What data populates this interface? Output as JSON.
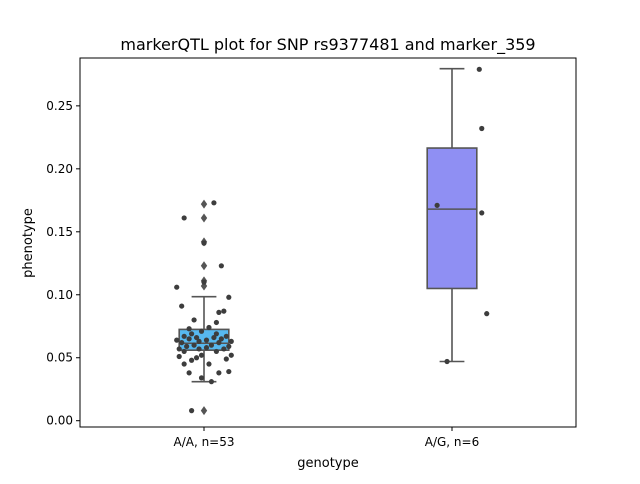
{
  "chart_data": {
    "type": "box",
    "title": "markerQTL plot for SNP rs9377481 and marker_359",
    "xlabel": "genotype",
    "ylabel": "phenotype",
    "ylim": [
      -0.005,
      0.288
    ],
    "yticks": [
      0.0,
      0.05,
      0.1,
      0.15,
      0.2,
      0.25
    ],
    "ytick_labels": [
      "0.00",
      "0.05",
      "0.10",
      "0.15",
      "0.20",
      "0.25"
    ],
    "grid": false,
    "groups": [
      {
        "label": "A/A, n=53",
        "color": "#57b8ef",
        "box": {
          "whisker_low": 0.031,
          "q1": 0.056,
          "median": 0.0615,
          "q3": 0.0725,
          "whisker_high": 0.0985
        },
        "outliers": [
          0.008,
          0.107,
          0.111,
          0.123,
          0.142,
          0.161,
          0.172
        ],
        "points": [
          {
            "dx": -0.05,
            "y": 0.008
          },
          {
            "dx": 0.03,
            "y": 0.031
          },
          {
            "dx": -0.01,
            "y": 0.034
          },
          {
            "dx": -0.06,
            "y": 0.038
          },
          {
            "dx": 0.06,
            "y": 0.038
          },
          {
            "dx": -0.08,
            "y": 0.045
          },
          {
            "dx": 0.02,
            "y": 0.045
          },
          {
            "dx": 0.09,
            "y": 0.049
          },
          {
            "dx": -0.1,
            "y": 0.051
          },
          {
            "dx": -0.03,
            "y": 0.05
          },
          {
            "dx": -0.01,
            "y": 0.052
          },
          {
            "dx": 0.11,
            "y": 0.052
          },
          {
            "dx": -0.08,
            "y": 0.055
          },
          {
            "dx": 0.05,
            "y": 0.055
          },
          {
            "dx": -0.1,
            "y": 0.057
          },
          {
            "dx": -0.02,
            "y": 0.057
          },
          {
            "dx": 0.01,
            "y": 0.058
          },
          {
            "dx": 0.08,
            "y": 0.057
          },
          {
            "dx": -0.07,
            "y": 0.059
          },
          {
            "dx": 0.1,
            "y": 0.059
          },
          {
            "dx": -0.04,
            "y": 0.06
          },
          {
            "dx": 0.03,
            "y": 0.06
          },
          {
            "dx": -0.09,
            "y": 0.062
          },
          {
            "dx": 0.06,
            "y": 0.062
          },
          {
            "dx": -0.02,
            "y": 0.063
          },
          {
            "dx": 0.11,
            "y": 0.063
          },
          {
            "dx": -0.11,
            "y": 0.064
          },
          {
            "dx": 0.01,
            "y": 0.064
          },
          {
            "dx": -0.06,
            "y": 0.065
          },
          {
            "dx": 0.07,
            "y": 0.065
          },
          {
            "dx": -0.03,
            "y": 0.066
          },
          {
            "dx": 0.04,
            "y": 0.066
          },
          {
            "dx": -0.08,
            "y": 0.067
          },
          {
            "dx": 0.09,
            "y": 0.067
          },
          {
            "dx": -0.05,
            "y": 0.069
          },
          {
            "dx": 0.05,
            "y": 0.069
          },
          {
            "dx": -0.01,
            "y": 0.071
          },
          {
            "dx": -0.06,
            "y": 0.073
          },
          {
            "dx": 0.02,
            "y": 0.074
          },
          {
            "dx": 0.05,
            "y": 0.078
          },
          {
            "dx": -0.04,
            "y": 0.08
          },
          {
            "dx": 0.06,
            "y": 0.086
          },
          {
            "dx": 0.08,
            "y": 0.087
          },
          {
            "dx": -0.09,
            "y": 0.091
          },
          {
            "dx": 0.1,
            "y": 0.098
          },
          {
            "dx": -0.11,
            "y": 0.106
          },
          {
            "dx": 0.0,
            "y": 0.11
          },
          {
            "dx": 0.07,
            "y": 0.123
          },
          {
            "dx": 0.0,
            "y": 0.141
          },
          {
            "dx": -0.08,
            "y": 0.161
          },
          {
            "dx": 0.04,
            "y": 0.173
          },
          {
            "dx": 0.1,
            "y": 0.039
          },
          {
            "dx": -0.05,
            "y": 0.048
          }
        ]
      },
      {
        "label": "A/G, n=6",
        "color": "#8f8ff3",
        "box": {
          "whisker_low": 0.047,
          "q1": 0.105,
          "median": 0.168,
          "q3": 0.2165,
          "whisker_high": 0.2795
        },
        "outliers": [],
        "points": [
          {
            "dx": -0.02,
            "y": 0.047
          },
          {
            "dx": 0.14,
            "y": 0.085
          },
          {
            "dx": 0.12,
            "y": 0.165
          },
          {
            "dx": -0.06,
            "y": 0.171
          },
          {
            "dx": 0.12,
            "y": 0.232
          },
          {
            "dx": 0.11,
            "y": 0.279
          }
        ]
      }
    ],
    "point_color": "#3d3d3d",
    "line_color": "#555555"
  }
}
